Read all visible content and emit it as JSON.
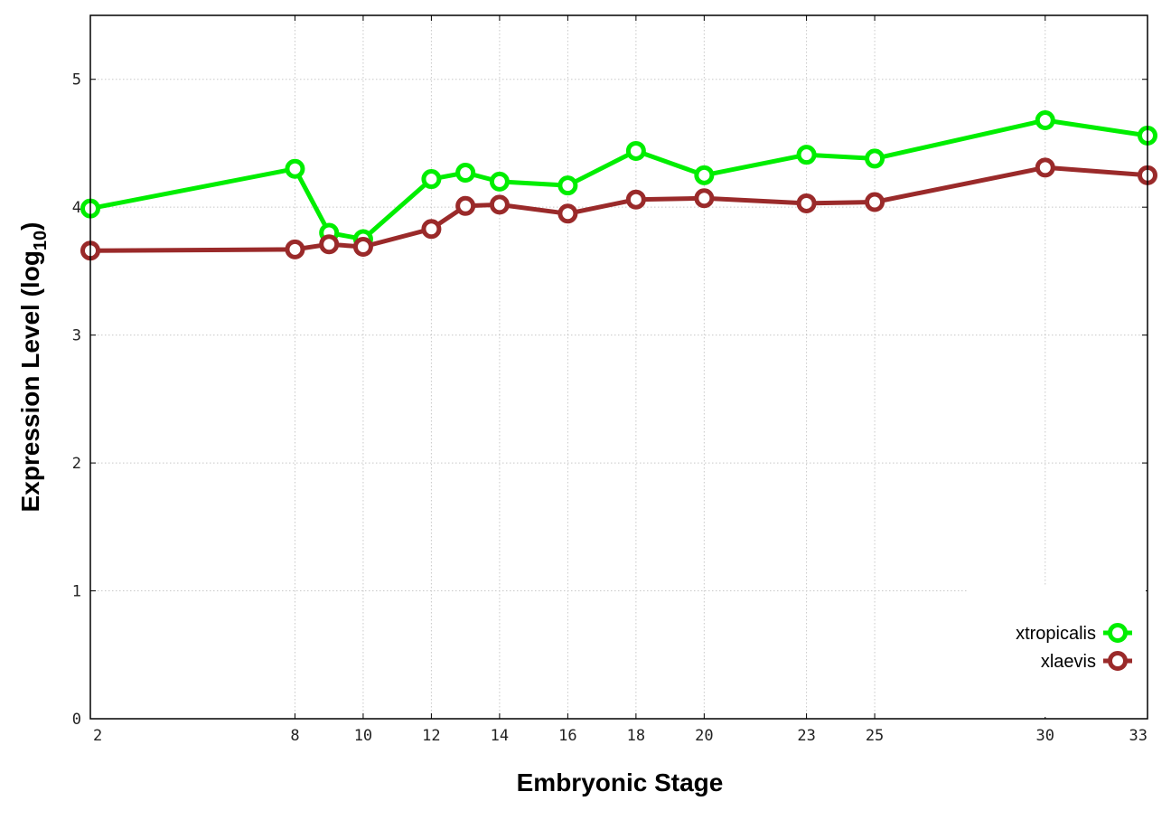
{
  "chart_data": {
    "type": "line",
    "xlabel": "Embryonic Stage",
    "ylabel_main": "Expression Level (log",
    "ylabel_sub": "10",
    "ylabel_close": ")",
    "x": [
      2,
      8,
      9,
      10,
      12,
      13,
      14,
      16,
      18,
      20,
      23,
      25,
      30,
      33
    ],
    "x_ticks": [
      2,
      8,
      10,
      12,
      14,
      16,
      18,
      20,
      23,
      25,
      30,
      33
    ],
    "y_ticks": [
      0,
      1,
      2,
      3,
      4,
      5
    ],
    "xlim": [
      2,
      33
    ],
    "ylim": [
      0,
      5.5
    ],
    "grid": true,
    "legend_position": "bottom-right",
    "series": [
      {
        "name": "xtropicalis",
        "color": "#00ee00",
        "values": [
          3.99,
          4.3,
          3.8,
          3.75,
          4.22,
          4.27,
          4.2,
          4.17,
          4.44,
          4.25,
          4.41,
          4.38,
          4.68,
          4.56
        ]
      },
      {
        "name": "xlaevis",
        "color": "#9a2a2a",
        "values": [
          3.66,
          3.67,
          3.71,
          3.69,
          3.83,
          4.01,
          4.02,
          3.95,
          4.06,
          4.07,
          4.03,
          4.04,
          4.31,
          4.25
        ]
      }
    ]
  }
}
